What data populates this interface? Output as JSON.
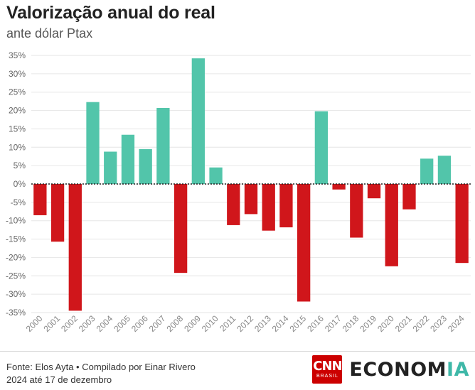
{
  "chart_data": {
    "type": "bar",
    "title": "Valorização anual do real",
    "subtitle": "ante dólar Ptax",
    "categories": [
      "2000",
      "2001",
      "2002",
      "2003",
      "2004",
      "2005",
      "2006",
      "2007",
      "2008",
      "2009",
      "2010",
      "2011",
      "2012",
      "2013",
      "2014",
      "2015",
      "2016",
      "2017",
      "2018",
      "2019",
      "2020",
      "2021",
      "2022",
      "2023",
      "2024"
    ],
    "values": [
      -8.5,
      -15.7,
      -34.5,
      22.3,
      8.8,
      13.4,
      9.5,
      20.7,
      -24.2,
      34.2,
      4.5,
      -11.2,
      -8.2,
      -12.7,
      -11.8,
      -32.0,
      19.8,
      -1.5,
      -14.6,
      -3.9,
      -22.4,
      -6.9,
      6.9,
      7.7,
      -21.5
    ],
    "ylim": [
      -35,
      35
    ],
    "yticks": [
      35,
      30,
      25,
      20,
      15,
      10,
      5,
      0,
      -5,
      -10,
      -15,
      -20,
      -25,
      -30,
      -35
    ],
    "ytick_labels": [
      "35%",
      "30%",
      "25%",
      "20%",
      "15%",
      "10%",
      "5%",
      "0%",
      "-5%",
      "-10%",
      "-15%",
      "-20%",
      "-25%",
      "-30%",
      "-35%"
    ],
    "grid": true,
    "colors": {
      "positive": "#52c5aa",
      "negative": "#d0161b",
      "grid": "#e6e6e6",
      "zero_line": "#222222"
    }
  },
  "footer": {
    "source_line1": "Fonte: Elos Ayta • Compilado por Einar Rivero",
    "source_line2": "2024 até 17 de dezembro"
  },
  "brand": {
    "cnn": "CNN",
    "brasil": "BRASIL",
    "economia_main": "ECONOM",
    "economia_accent": "IA"
  }
}
